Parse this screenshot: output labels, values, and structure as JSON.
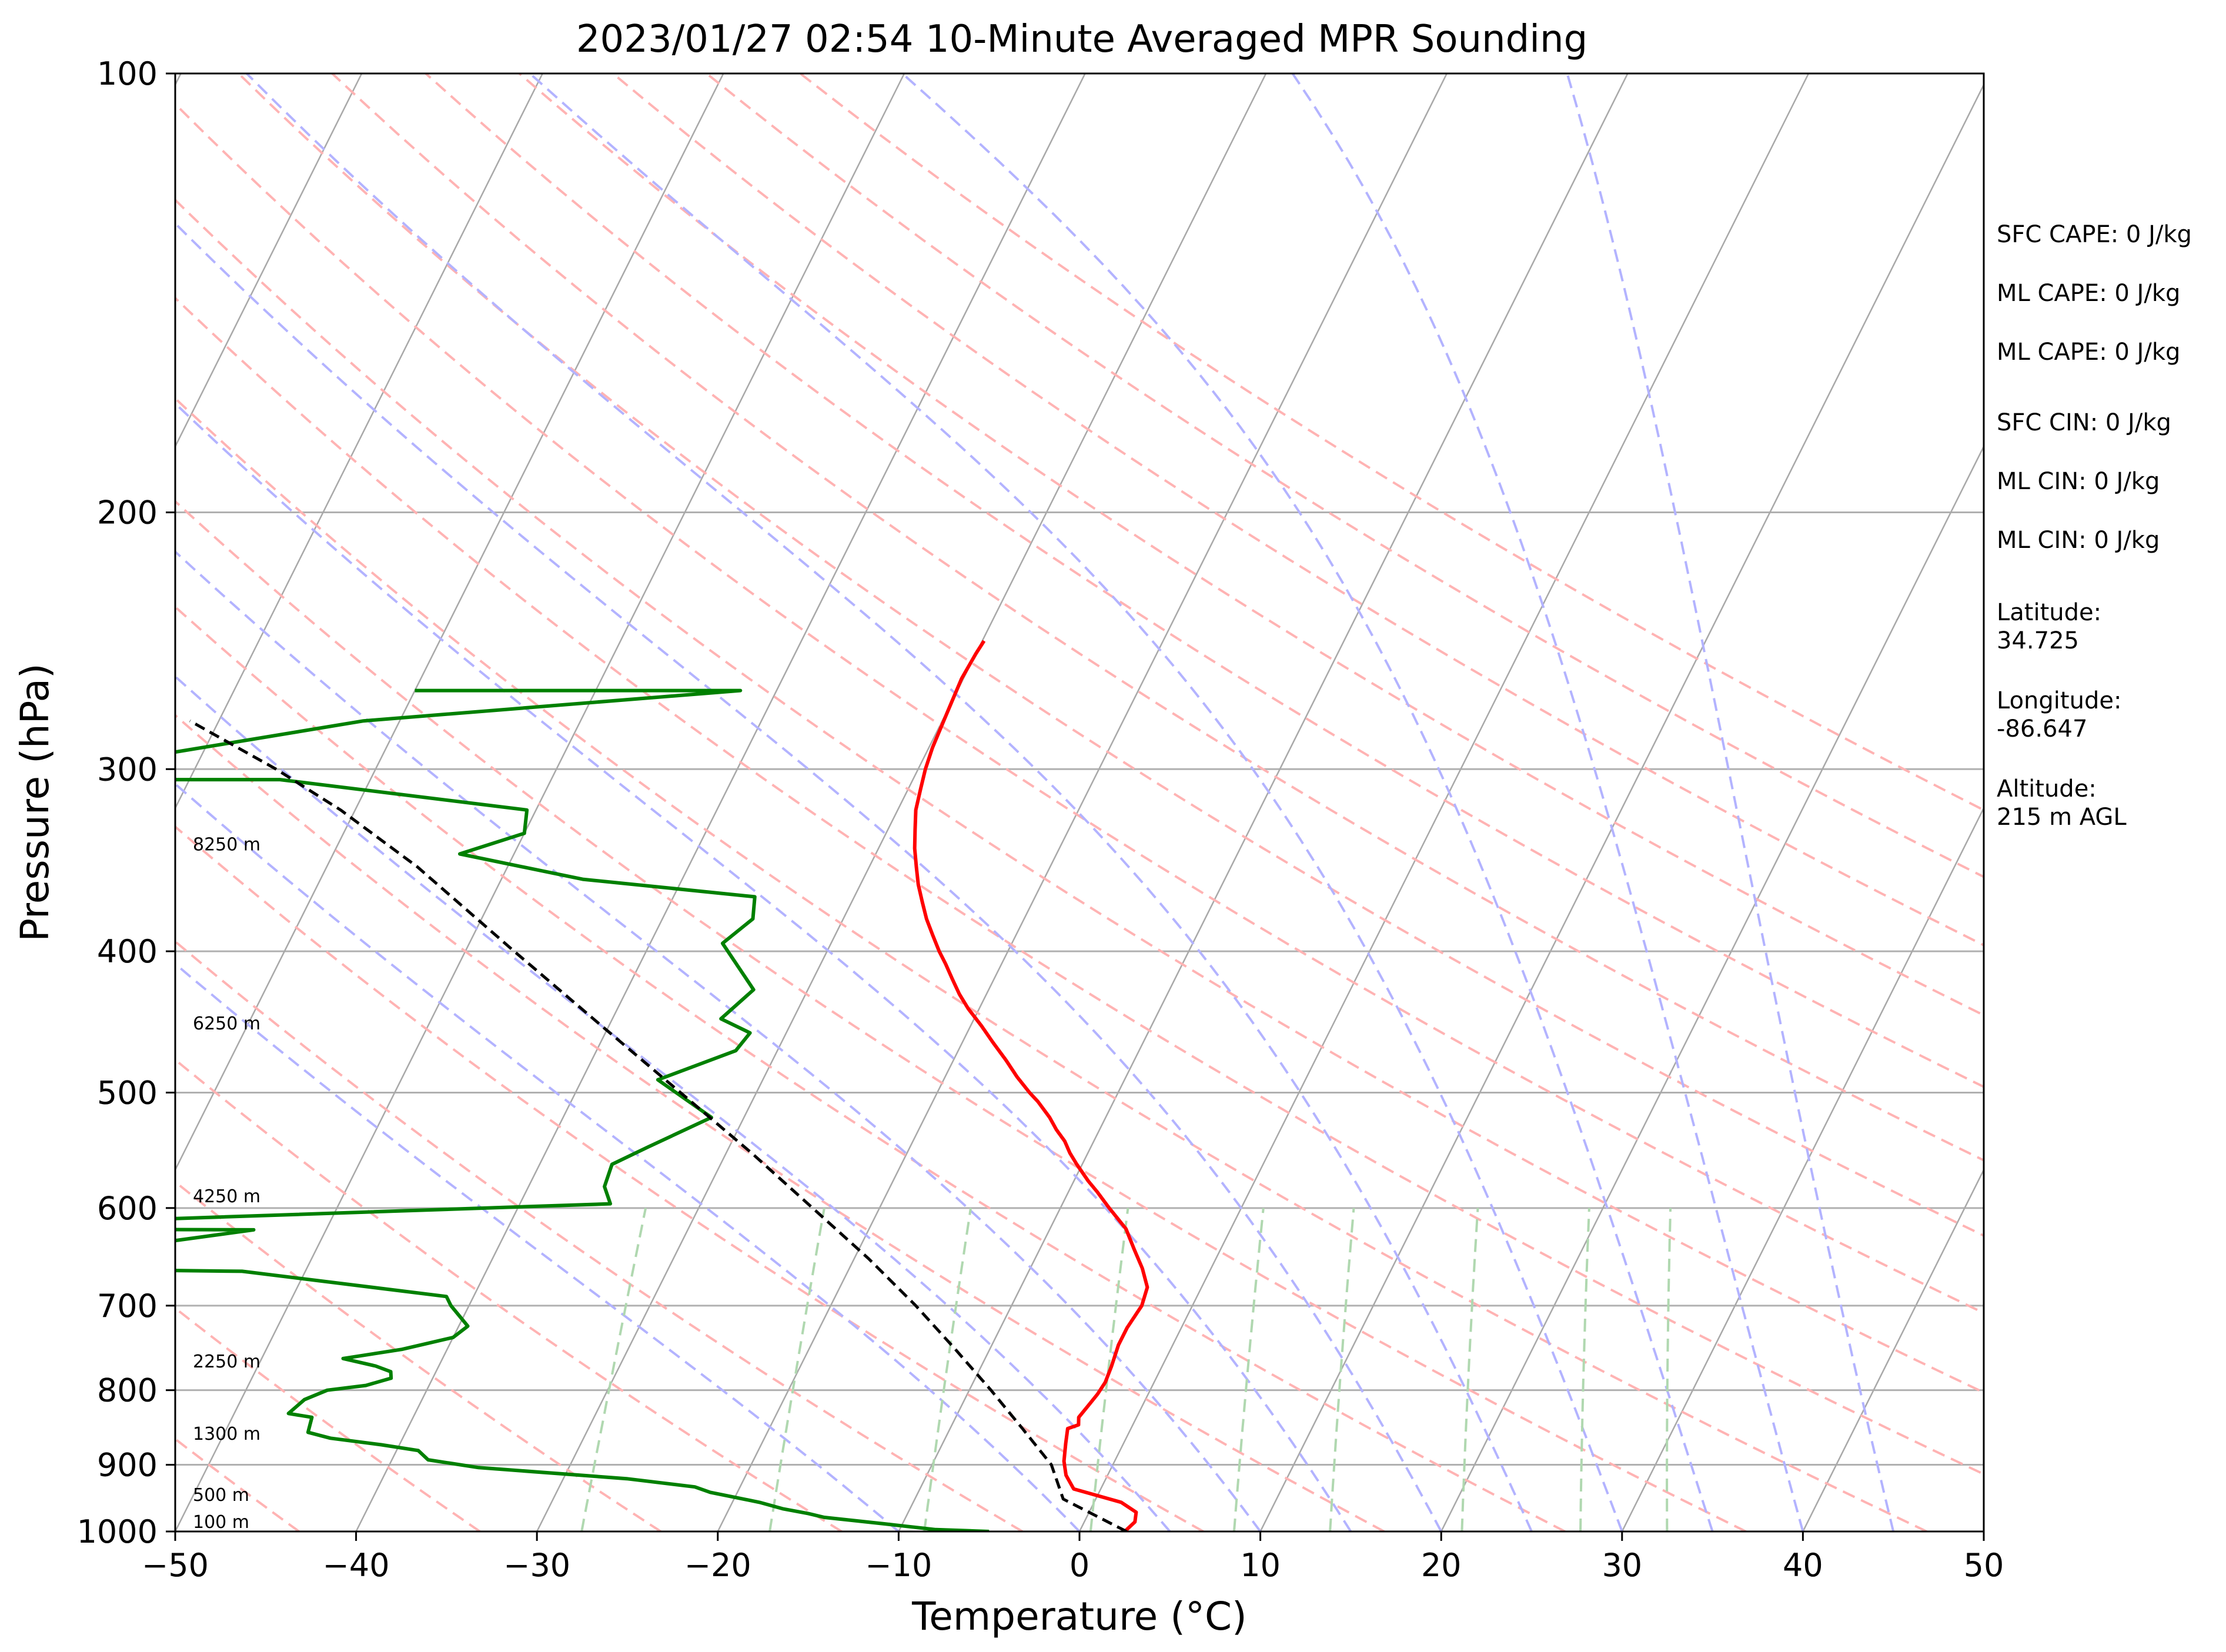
{
  "chart_data": {
    "type": "line",
    "subtype": "skew-T log-P sounding",
    "title": "2023/01/27 02:54 10-Minute Averaged MPR Sounding",
    "xlabel": "Temperature (°C)",
    "ylabel": "Pressure (hPa)",
    "xlim": [
      -50,
      50
    ],
    "ylim": [
      1000,
      100
    ],
    "y_scale": "log",
    "x_ticks": [
      "−50",
      "−40",
      "−30",
      "−20",
      "−10",
      "0",
      "10",
      "20",
      "30",
      "40",
      "50"
    ],
    "y_ticks": [
      "100",
      "200",
      "300",
      "400",
      "500",
      "600",
      "700",
      "800",
      "900",
      "1000"
    ],
    "grid": true,
    "series": [
      {
        "color": "#ff0000",
        "points": [
          {
            "t": 2.5,
            "p": 1000
          },
          {
            "t": 2.8,
            "p": 985
          },
          {
            "t": 2.6,
            "p": 970
          },
          {
            "t": 1.5,
            "p": 955
          },
          {
            "t": -1.5,
            "p": 935
          },
          {
            "t": -2.3,
            "p": 915
          },
          {
            "t": -2.8,
            "p": 895
          },
          {
            "t": -3.2,
            "p": 870
          },
          {
            "t": -3.5,
            "p": 850
          },
          {
            "t": -3.0,
            "p": 845
          },
          {
            "t": -3.2,
            "p": 835
          },
          {
            "t": -3.0,
            "p": 820
          },
          {
            "t": -2.8,
            "p": 805
          },
          {
            "t": -2.7,
            "p": 790
          },
          {
            "t": -2.8,
            "p": 770
          },
          {
            "t": -3.0,
            "p": 745
          },
          {
            "t": -3.0,
            "p": 725
          },
          {
            "t": -2.8,
            "p": 700
          },
          {
            "t": -3.0,
            "p": 680
          },
          {
            "t": -3.8,
            "p": 660
          },
          {
            "t": -4.8,
            "p": 640
          },
          {
            "t": -5.8,
            "p": 620
          },
          {
            "t": -7.3,
            "p": 600
          },
          {
            "t": -8.4,
            "p": 585
          },
          {
            "t": -9.2,
            "p": 575
          },
          {
            "t": -10.3,
            "p": 560
          },
          {
            "t": -11.0,
            "p": 550
          },
          {
            "t": -11.6,
            "p": 540
          },
          {
            "t": -12.4,
            "p": 530
          },
          {
            "t": -13.1,
            "p": 520
          },
          {
            "t": -14.2,
            "p": 507
          },
          {
            "t": -14.9,
            "p": 500
          },
          {
            "t": -16.0,
            "p": 488
          },
          {
            "t": -17.1,
            "p": 475
          },
          {
            "t": -18.3,
            "p": 462
          },
          {
            "t": -19.4,
            "p": 450
          },
          {
            "t": -20.6,
            "p": 438
          },
          {
            "t": -21.5,
            "p": 428
          },
          {
            "t": -22.3,
            "p": 418
          },
          {
            "t": -23.1,
            "p": 408
          },
          {
            "t": -23.8,
            "p": 400
          },
          {
            "t": -24.6,
            "p": 390
          },
          {
            "t": -25.4,
            "p": 380
          },
          {
            "t": -26.1,
            "p": 370
          },
          {
            "t": -26.8,
            "p": 360
          },
          {
            "t": -27.4,
            "p": 350
          },
          {
            "t": -28.0,
            "p": 340
          },
          {
            "t": -28.5,
            "p": 330
          },
          {
            "t": -29.0,
            "p": 320
          },
          {
            "t": -29.3,
            "p": 310
          },
          {
            "t": -29.6,
            "p": 300
          },
          {
            "t": -29.8,
            "p": 290
          },
          {
            "t": -29.9,
            "p": 280
          },
          {
            "t": -30.0,
            "p": 270
          },
          {
            "t": -30.1,
            "p": 260
          },
          {
            "t": -30.0,
            "p": 250
          },
          {
            "t": -29.9,
            "p": 245
          }
        ]
      },
      {
        "color": "#008000",
        "points": [
          {
            "t": -5.0,
            "p": 1000
          },
          {
            "t": -8.0,
            "p": 997
          },
          {
            "t": -11.0,
            "p": 988
          },
          {
            "t": -14.5,
            "p": 978
          },
          {
            "t": -15.5,
            "p": 972
          },
          {
            "t": -17.0,
            "p": 965
          },
          {
            "t": -18.5,
            "p": 955
          },
          {
            "t": -21.5,
            "p": 940
          },
          {
            "t": -22.5,
            "p": 932
          },
          {
            "t": -26.5,
            "p": 920
          },
          {
            "t": -35.0,
            "p": 904
          },
          {
            "t": -38.0,
            "p": 893
          },
          {
            "t": -38.8,
            "p": 880
          },
          {
            "t": -41.0,
            "p": 872
          },
          {
            "t": -44.0,
            "p": 863
          },
          {
            "t": -45.4,
            "p": 855
          },
          {
            "t": -45.6,
            "p": 835
          },
          {
            "t": -47.0,
            "p": 830
          },
          {
            "t": -46.5,
            "p": 812
          },
          {
            "t": -45.5,
            "p": 800
          },
          {
            "t": -43.5,
            "p": 794
          },
          {
            "t": -42.3,
            "p": 785
          },
          {
            "t": -42.5,
            "p": 777
          },
          {
            "t": -43.5,
            "p": 770
          },
          {
            "t": -45.5,
            "p": 761
          },
          {
            "t": -42.5,
            "p": 750
          },
          {
            "t": -40.0,
            "p": 736
          },
          {
            "t": -39.5,
            "p": 723
          },
          {
            "t": -41.0,
            "p": 700
          },
          {
            "t": -41.5,
            "p": 690
          },
          {
            "t": -53.5,
            "p": 663
          },
          {
            "t": -68.5,
            "p": 660
          },
          {
            "t": -54.0,
            "p": 621
          },
          {
            "t": -75.0,
            "p": 620
          },
          {
            "t": -35.0,
            "p": 596
          },
          {
            "t": -35.8,
            "p": 580
          },
          {
            "t": -36.0,
            "p": 560
          },
          {
            "t": -34.5,
            "p": 545
          },
          {
            "t": -31.8,
            "p": 520
          },
          {
            "t": -35.8,
            "p": 490
          },
          {
            "t": -32.3,
            "p": 468
          },
          {
            "t": -32.0,
            "p": 455
          },
          {
            "t": -34.0,
            "p": 445
          },
          {
            "t": -33.0,
            "p": 425
          },
          {
            "t": -36.0,
            "p": 395
          },
          {
            "t": -35.0,
            "p": 380
          },
          {
            "t": -35.5,
            "p": 367
          },
          {
            "t": -45.5,
            "p": 357
          },
          {
            "t": -53.0,
            "p": 343
          },
          {
            "t": -50.0,
            "p": 332
          },
          {
            "t": -50.5,
            "p": 320
          },
          {
            "t": -65.0,
            "p": 305
          },
          {
            "t": -80.0,
            "p": 305
          },
          {
            "t": -62.0,
            "p": 278
          },
          {
            "t": -42.0,
            "p": 265
          },
          {
            "t": -60.0,
            "p": 265
          }
        ]
      },
      {
        "color": "#000000",
        "dashed": true,
        "points": [
          {
            "t": 2.6,
            "p": 1000
          },
          {
            "t": -1.8,
            "p": 950
          },
          {
            "t": -3.4,
            "p": 900
          },
          {
            "t": -6.0,
            "p": 850
          },
          {
            "t": -8.8,
            "p": 800
          },
          {
            "t": -11.9,
            "p": 750
          },
          {
            "t": -15.3,
            "p": 700
          },
          {
            "t": -19.2,
            "p": 650
          },
          {
            "t": -23.7,
            "p": 600
          },
          {
            "t": -28.6,
            "p": 550
          },
          {
            "t": -34.2,
            "p": 500
          },
          {
            "t": -40.4,
            "p": 450
          },
          {
            "t": -47.3,
            "p": 400
          },
          {
            "t": -55.0,
            "p": 350
          },
          {
            "t": -60.8,
            "p": 320
          },
          {
            "t": -65.5,
            "p": 300
          },
          {
            "t": -71.6,
            "p": 278
          }
        ]
      }
    ],
    "background_lines": {
      "isotherms_step_c": 10,
      "dry_adiabats_theta_k": [
        230,
        240,
        250,
        260,
        270,
        280,
        290,
        300,
        310,
        320,
        330,
        340,
        350,
        360,
        370,
        380,
        390,
        400,
        410,
        420
      ],
      "moist_adiabats_start_c": [
        -10,
        0,
        5,
        10,
        15,
        20,
        25,
        30,
        35,
        40,
        45
      ],
      "mixing_ratio_gkg": [
        0.4,
        1,
        2,
        4,
        7,
        10,
        16,
        24,
        32
      ]
    },
    "height_labels": [
      {
        "text": "100 m",
        "p": 1000
      },
      {
        "text": "500 m",
        "p": 958
      },
      {
        "text": "1300 m",
        "p": 870
      },
      {
        "text": "2250 m",
        "p": 776
      },
      {
        "text": "4250 m",
        "p": 598
      },
      {
        "text": "6250 m",
        "p": 455
      },
      {
        "text": "8250 m",
        "p": 343
      }
    ],
    "annotations": [
      "SFC CAPE: 0 J/kg",
      "ML CAPE: 0 J/kg",
      "ML CAPE: 0 J/kg",
      "SFC CIN: 0 J/kg",
      "ML CIN: 0 J/kg",
      "ML CIN: 0 J/kg",
      "Latitude:\n34.725",
      "Longitude:\n-86.647",
      "Altitude:\n215 m AGL"
    ]
  },
  "colors": {
    "temperature": "#ff0000",
    "dewpoint": "#008000",
    "parcel": "#000000",
    "isotherm": "#a8a8a8",
    "dry_adiabat": "#ffb3b3",
    "moist_adiabat": "#b3b3ff",
    "mixing_ratio": "#b0d8b0",
    "isobar": "#b0b0b0"
  }
}
